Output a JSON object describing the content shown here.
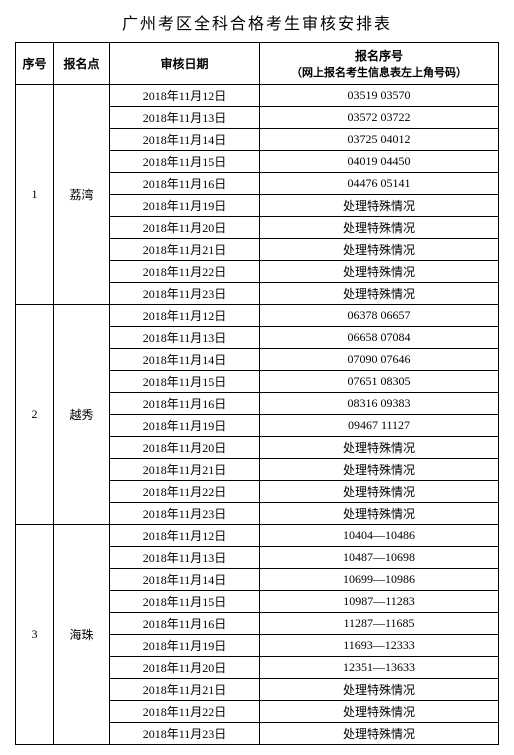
{
  "title": "广州考区全科合格考生审核安排表",
  "headers": {
    "seq": "序号",
    "location": "报名点",
    "date": "审核日期",
    "number_main": "报名序号",
    "number_sub": "（网上报名考生信息表左上角号码）"
  },
  "groups": [
    {
      "seq": "1",
      "location": "荔湾",
      "rows": [
        {
          "date": "2018年11月12日",
          "num": "03519 03570"
        },
        {
          "date": "2018年11月13日",
          "num": "03572 03722"
        },
        {
          "date": "2018年11月14日",
          "num": "03725 04012"
        },
        {
          "date": "2018年11月15日",
          "num": "04019 04450"
        },
        {
          "date": "2018年11月16日",
          "num": "04476 05141"
        },
        {
          "date": "2018年11月19日",
          "num": "处理特殊情况"
        },
        {
          "date": "2018年11月20日",
          "num": "处理特殊情况"
        },
        {
          "date": "2018年11月21日",
          "num": "处理特殊情况"
        },
        {
          "date": "2018年11月22日",
          "num": "处理特殊情况"
        },
        {
          "date": "2018年11月23日",
          "num": "处理特殊情况"
        }
      ]
    },
    {
      "seq": "2",
      "location": "越秀",
      "rows": [
        {
          "date": "2018年11月12日",
          "num": "06378 06657"
        },
        {
          "date": "2018年11月13日",
          "num": "06658 07084"
        },
        {
          "date": "2018年11月14日",
          "num": "07090 07646"
        },
        {
          "date": "2018年11月15日",
          "num": "07651 08305"
        },
        {
          "date": "2018年11月16日",
          "num": "08316 09383"
        },
        {
          "date": "2018年11月19日",
          "num": "09467 11127"
        },
        {
          "date": "2018年11月20日",
          "num": "处理特殊情况"
        },
        {
          "date": "2018年11月21日",
          "num": "处理特殊情况"
        },
        {
          "date": "2018年11月22日",
          "num": "处理特殊情况"
        },
        {
          "date": "2018年11月23日",
          "num": "处理特殊情况"
        }
      ]
    },
    {
      "seq": "3",
      "location": "海珠",
      "rows": [
        {
          "date": "2018年11月12日",
          "num": "10404—10486"
        },
        {
          "date": "2018年11月13日",
          "num": "10487—10698"
        },
        {
          "date": "2018年11月14日",
          "num": "10699—10986"
        },
        {
          "date": "2018年11月15日",
          "num": "10987—11283"
        },
        {
          "date": "2018年11月16日",
          "num": "11287—11685"
        },
        {
          "date": "2018年11月19日",
          "num": "11693—12333"
        },
        {
          "date": "2018年11月20日",
          "num": "12351—13633"
        },
        {
          "date": "2018年11月21日",
          "num": "处理特殊情况"
        },
        {
          "date": "2018年11月22日",
          "num": "处理特殊情况"
        },
        {
          "date": "2018年11月23日",
          "num": "处理特殊情况"
        }
      ]
    }
  ]
}
